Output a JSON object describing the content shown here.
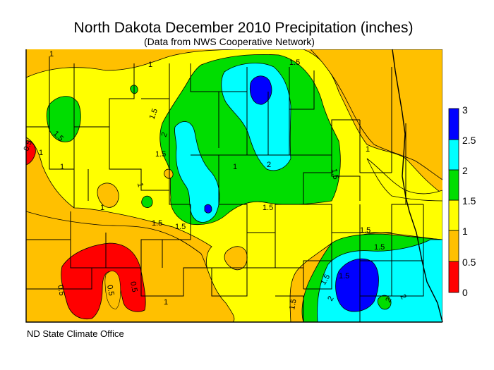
{
  "title": "North Dakota December 2010 Precipitation (inches)",
  "subtitle": "(Data from NWS Cooperative Network)",
  "credit": "ND State Climate Office",
  "legend": {
    "bins": [
      {
        "range": "0 - 0.5",
        "color": "#ff0000"
      },
      {
        "range": "0.5 - 1",
        "color": "#ffc000"
      },
      {
        "range": "1 - 1.5",
        "color": "#ffff00"
      },
      {
        "range": "1.5 - 2",
        "color": "#00dd00"
      },
      {
        "range": "2 - 2.5",
        "color": "#00ffff"
      },
      {
        "range": "2.5 - 3",
        "color": "#0000ff"
      }
    ],
    "labels": [
      "3",
      "2.5",
      "2",
      "1.5",
      "1",
      "0.5",
      "0"
    ]
  },
  "contour_labels": [
    "1",
    "1.5",
    "1.5",
    "1",
    "1.5",
    "2",
    "1.5",
    "1.5",
    "1",
    "1",
    "1.5",
    "1.5",
    "1.5",
    "1",
    "1.5",
    "2",
    "1.5",
    "1",
    "1",
    "0.5",
    "0.5",
    "0.5",
    "1",
    "0.5",
    "1.5",
    "1.5",
    "2",
    "1",
    "1.5",
    "2",
    "2"
  ]
}
